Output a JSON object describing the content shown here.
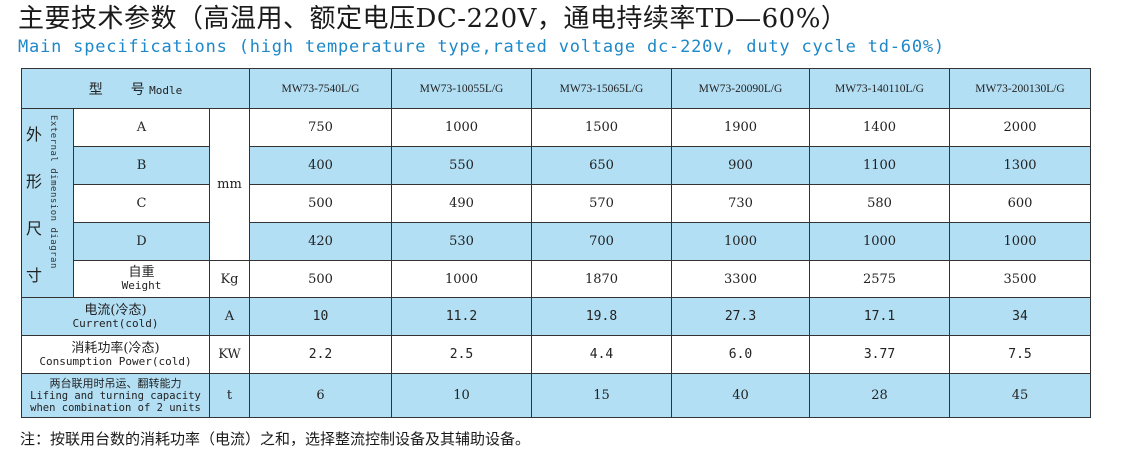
{
  "title": {
    "cn": "主要技术参数（高温用、额定电压DC-220V，通电持续率TD—60%）",
    "en": "Main specifications (high temperature type,rated voltage dc-220v, duty cycle td-60%)"
  },
  "table": {
    "header": {
      "type_cn": "型　　号",
      "type_en": "Modle",
      "models": [
        "MW73-7540L/G",
        "MW73-10055L/G",
        "MW73-15065L/G",
        "MW73-20090L/G",
        "MW73-140110L/G",
        "MW73-200130L/G"
      ]
    },
    "dimensions": {
      "group_cn": [
        "外",
        "形",
        "尺",
        "寸"
      ],
      "group_en": "External dimension diagran",
      "unit": "mm",
      "rows": [
        {
          "label": "A",
          "values": [
            "750",
            "1000",
            "1500",
            "1900",
            "1400",
            "2000"
          ]
        },
        {
          "label": "B",
          "values": [
            "400",
            "550",
            "650",
            "900",
            "1100",
            "1300"
          ]
        },
        {
          "label": "C",
          "values": [
            "500",
            "490",
            "570",
            "730",
            "580",
            "600"
          ]
        },
        {
          "label": "D",
          "values": [
            "420",
            "530",
            "700",
            "1000",
            "1000",
            "1000"
          ]
        }
      ]
    },
    "weight": {
      "label_cn": "自重",
      "label_en": "Weight",
      "unit": "Kg",
      "values": [
        "500",
        "1000",
        "1870",
        "3300",
        "2575",
        "3500"
      ]
    },
    "current": {
      "label_cn": "电流(冷态)",
      "label_en": "Current(cold)",
      "unit": "A",
      "values": [
        "10",
        "11.2",
        "19.8",
        "27.3",
        "17.1",
        "34"
      ]
    },
    "power": {
      "label_cn": "消耗功率(冷态)",
      "label_en": "Consumption Power(cold)",
      "unit": "KW",
      "values": [
        "2.2",
        "2.5",
        "4.4",
        "6.0",
        "3.77",
        "7.5"
      ]
    },
    "lifting": {
      "label_cn": "两台联用时吊运、翻转能力",
      "label_en_1": "Lifing and turning capacity",
      "label_en_2": "when  combination of 2 units",
      "unit": "t",
      "values": [
        "6",
        "10",
        "15",
        "40",
        "28",
        "45"
      ]
    }
  },
  "footnote": "注：按联用台数的消耗功率（电流）之和，选择整流控制设备及其辅助设备。"
}
